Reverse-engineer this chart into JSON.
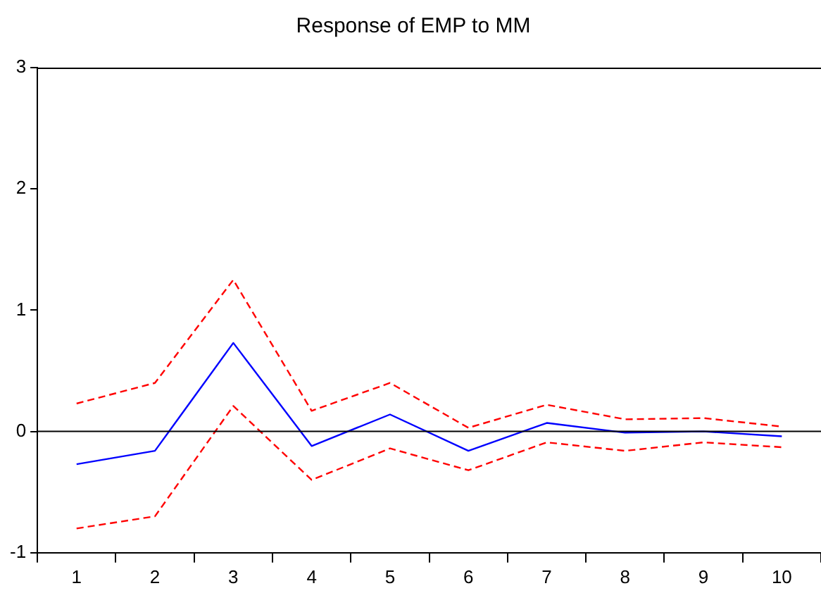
{
  "chart_data": {
    "type": "line",
    "title": "Response of EMP to MM",
    "categories": [
      "1",
      "2",
      "3",
      "4",
      "5",
      "6",
      "7",
      "8",
      "9",
      "10"
    ],
    "series": [
      {
        "color": "#0000ff",
        "line_style": "solid",
        "values": [
          -0.27,
          -0.16,
          0.73,
          -0.12,
          0.14,
          -0.16,
          0.07,
          -0.01,
          0.0,
          -0.04
        ]
      },
      {
        "color": "#ff0000",
        "line_style": "dashed",
        "values": [
          0.23,
          0.4,
          1.25,
          0.17,
          0.4,
          0.03,
          0.22,
          0.1,
          0.11,
          0.04
        ]
      },
      {
        "color": "#ff0000",
        "line_style": "dashed",
        "values": [
          -0.8,
          -0.7,
          0.21,
          -0.4,
          -0.14,
          -0.32,
          -0.09,
          -0.16,
          -0.09,
          -0.13
        ]
      }
    ],
    "ylim": [
      -1,
      3
    ],
    "yticks": [
      -1,
      0,
      1,
      2,
      3
    ],
    "ref_lines": [
      {
        "axis": "y",
        "value": 0,
        "color": "#000000"
      }
    ],
    "grid": false,
    "legend": false,
    "marker": "none"
  }
}
